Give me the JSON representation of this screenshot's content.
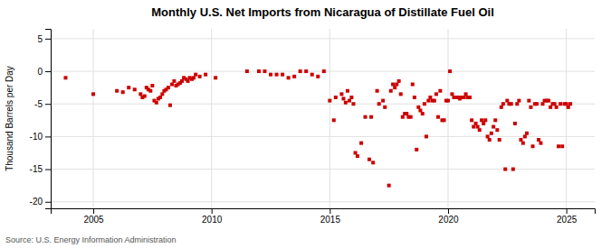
{
  "chart_data": {
    "type": "scatter",
    "title": "Monthly U.S. Net Imports from Nicaragua of Distillate Fuel Oil",
    "ylabel": "Thousand Barrels per Day",
    "source": "Source: U.S. Energy Information Administration",
    "color": "#cc0000",
    "marker": "square",
    "grid": true,
    "xlim": [
      2003.2,
      2026.2
    ],
    "ylim": [
      -21,
      6.5
    ],
    "xticks": [
      2005,
      2010,
      2015,
      2020,
      2025
    ],
    "yticks": [
      5,
      0,
      -5,
      -10,
      -15,
      -20
    ],
    "x": [
      2003.83,
      2005.0,
      2006.0,
      2006.25,
      2006.5,
      2006.75,
      2007.0,
      2007.08,
      2007.17,
      2007.25,
      2007.33,
      2007.42,
      2007.5,
      2007.58,
      2007.67,
      2007.75,
      2007.83,
      2007.92,
      2008.0,
      2008.08,
      2008.17,
      2008.25,
      2008.33,
      2008.42,
      2008.5,
      2008.58,
      2008.67,
      2008.75,
      2008.83,
      2008.92,
      2009.0,
      2009.08,
      2009.17,
      2009.25,
      2009.33,
      2009.5,
      2009.75,
      2010.17,
      2011.5,
      2012.0,
      2012.25,
      2012.5,
      2012.75,
      2013.0,
      2013.25,
      2013.5,
      2013.75,
      2014.0,
      2014.25,
      2014.5,
      2014.75,
      2015.0,
      2015.17,
      2015.25,
      2015.5,
      2015.58,
      2015.67,
      2015.75,
      2015.83,
      2015.92,
      2016.0,
      2016.08,
      2016.17,
      2016.33,
      2016.5,
      2016.67,
      2016.75,
      2016.83,
      2017.0,
      2017.08,
      2017.25,
      2017.33,
      2017.5,
      2017.58,
      2017.67,
      2017.75,
      2017.83,
      2017.92,
      2018.0,
      2018.08,
      2018.17,
      2018.25,
      2018.33,
      2018.42,
      2018.5,
      2018.58,
      2018.67,
      2018.75,
      2018.83,
      2018.92,
      2019.0,
      2019.08,
      2019.17,
      2019.25,
      2019.33,
      2019.42,
      2019.5,
      2019.58,
      2019.67,
      2019.75,
      2019.83,
      2019.92,
      2020.0,
      2020.08,
      2020.17,
      2020.25,
      2020.33,
      2020.42,
      2020.5,
      2020.58,
      2020.67,
      2020.75,
      2020.83,
      2020.92,
      2021.0,
      2021.08,
      2021.17,
      2021.25,
      2021.33,
      2021.42,
      2021.5,
      2021.58,
      2021.67,
      2021.75,
      2021.83,
      2021.92,
      2022.0,
      2022.08,
      2022.17,
      2022.25,
      2022.33,
      2022.42,
      2022.5,
      2022.58,
      2022.67,
      2022.75,
      2022.83,
      2022.92,
      2023.0,
      2023.08,
      2023.17,
      2023.25,
      2023.33,
      2023.42,
      2023.5,
      2023.58,
      2023.67,
      2023.75,
      2023.83,
      2023.92,
      2024.0,
      2024.08,
      2024.17,
      2024.25,
      2024.33,
      2024.42,
      2024.5,
      2024.58,
      2024.67,
      2024.75,
      2024.83,
      2024.92,
      2025.0,
      2025.08,
      2025.17
    ],
    "values": [
      -1.0,
      -3.5,
      -3.0,
      -3.2,
      -2.5,
      -2.8,
      -3.5,
      -4.0,
      -3.8,
      -2.5,
      -2.8,
      -3.0,
      -2.2,
      -4.5,
      -4.8,
      -4.2,
      -4.0,
      -3.5,
      -3.0,
      -2.8,
      -2.5,
      -5.2,
      -2.0,
      -1.5,
      -2.2,
      -2.0,
      -1.8,
      -1.5,
      -1.0,
      -1.2,
      -1.5,
      -1.0,
      -1.2,
      -1.0,
      -0.5,
      -0.8,
      -0.5,
      -1.0,
      0.0,
      0.0,
      0.0,
      -0.5,
      -0.5,
      -0.5,
      -1.0,
      -0.8,
      0.0,
      0.0,
      -0.5,
      -0.8,
      0.0,
      -4.5,
      -7.5,
      -4.0,
      -3.5,
      -4.2,
      -4.8,
      -3.0,
      -4.5,
      -4.0,
      -5.0,
      -12.5,
      -13.0,
      -11.0,
      -7.0,
      -13.5,
      -7.0,
      -14.0,
      -3.0,
      -5.0,
      -4.5,
      -5.5,
      -17.5,
      -3.0,
      -2.0,
      -2.5,
      -2.0,
      -1.5,
      -3.5,
      -7.0,
      -6.5,
      -6.5,
      -7.0,
      -7.0,
      -2.0,
      -4.0,
      -12.0,
      -5.5,
      -6.0,
      -6.5,
      -5.0,
      -10.0,
      -4.5,
      -4.0,
      -4.5,
      -4.5,
      -3.5,
      -7.0,
      -3.0,
      -7.5,
      -7.5,
      -4.5,
      -4.5,
      0.0,
      -3.5,
      -4.0,
      -4.0,
      -4.0,
      -4.2,
      -4.0,
      -4.0,
      -3.5,
      -4.0,
      -4.0,
      -7.5,
      -8.5,
      -8.0,
      -8.5,
      -9.0,
      -7.5,
      -8.0,
      -7.5,
      -10.0,
      -10.5,
      -9.5,
      -8.5,
      -7.5,
      -9.0,
      -10.5,
      -5.5,
      -5.0,
      -15.0,
      -4.5,
      -5.0,
      -5.0,
      -15.0,
      -8.0,
      -5.0,
      -4.5,
      -10.5,
      -11.0,
      -10.0,
      -9.5,
      -4.5,
      -5.5,
      -11.5,
      -5.0,
      -5.0,
      -10.5,
      -11.0,
      -5.0,
      -4.5,
      -4.5,
      -4.5,
      -5.5,
      -5.0,
      -5.0,
      -5.5,
      -11.5,
      -5.0,
      -11.5,
      -5.0,
      -5.0,
      -5.5,
      -5.0
    ]
  }
}
